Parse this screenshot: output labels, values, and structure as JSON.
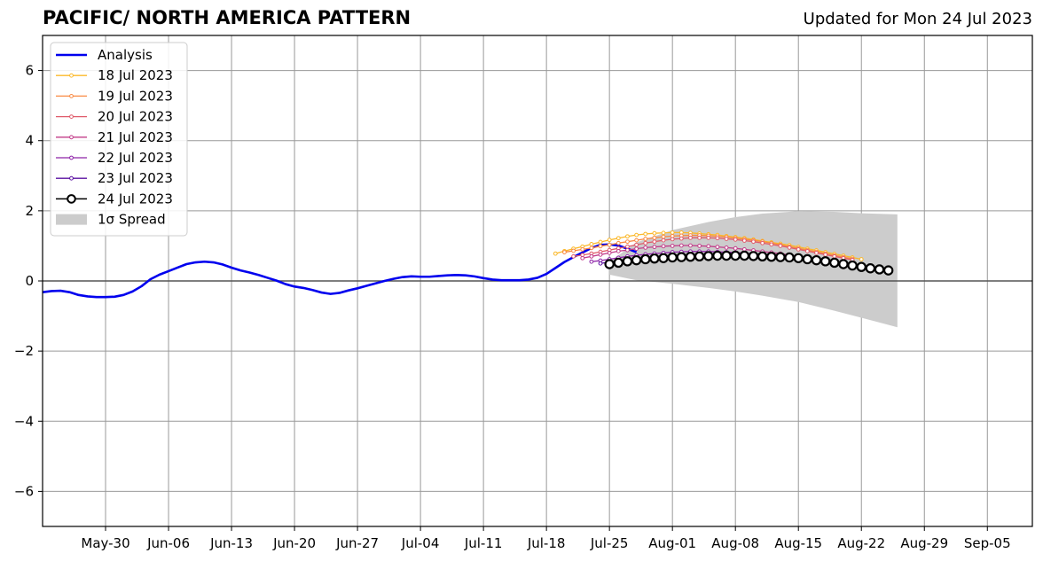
{
  "header": {
    "title": "PACIFIC/ NORTH AMERICA PATTERN",
    "subtitle": "Updated for Mon 24 Jul 2023"
  },
  "chart_data": {
    "type": "line",
    "title": "PACIFIC/ NORTH AMERICA PATTERN",
    "subtitle": "Updated for Mon 24 Jul 2023",
    "xlabel": "",
    "ylabel": "",
    "xlim": [
      "2023-05-23",
      "2023-09-10"
    ],
    "ylim": [
      -7,
      7
    ],
    "x_ticks": [
      "May-30",
      "Jun-06",
      "Jun-13",
      "Jun-20",
      "Jun-27",
      "Jul-04",
      "Jul-11",
      "Jul-18",
      "Jul-25",
      "Aug-01",
      "Aug-08",
      "Aug-15",
      "Aug-22",
      "Aug-29",
      "Sep-05"
    ],
    "x_tick_dates": [
      "2023-05-30",
      "2023-06-06",
      "2023-06-13",
      "2023-06-20",
      "2023-06-27",
      "2023-07-04",
      "2023-07-11",
      "2023-07-18",
      "2023-07-25",
      "2023-08-01",
      "2023-08-08",
      "2023-08-15",
      "2023-08-22",
      "2023-08-29",
      "2023-09-05"
    ],
    "y_ticks": [
      6,
      4,
      2,
      0,
      -2,
      -4,
      -6
    ],
    "y_tick_labels": [
      "6",
      "4",
      "2",
      "0",
      "−2",
      "−4",
      "−6"
    ],
    "grid": true,
    "legend_position": "top-left",
    "analysis": {
      "name": "Analysis",
      "color": "#0000ee",
      "start_date": "2023-05-23",
      "values": [
        -0.32,
        -0.29,
        -0.28,
        -0.32,
        -0.4,
        -0.44,
        -0.46,
        -0.46,
        -0.45,
        -0.4,
        -0.3,
        -0.15,
        0.05,
        0.18,
        0.28,
        0.38,
        0.48,
        0.53,
        0.55,
        0.53,
        0.47,
        0.38,
        0.3,
        0.24,
        0.17,
        0.09,
        0.01,
        -0.09,
        -0.16,
        -0.2,
        -0.26,
        -0.33,
        -0.37,
        -0.34,
        -0.27,
        -0.21,
        -0.14,
        -0.07,
        0.0,
        0.06,
        0.11,
        0.13,
        0.12,
        0.12,
        0.14,
        0.16,
        0.17,
        0.16,
        0.13,
        0.08,
        0.04,
        0.02,
        0.02,
        0.02,
        0.04,
        0.09,
        0.2,
        0.37,
        0.54,
        0.68,
        0.81,
        0.94,
        1.03,
        1.04,
        1.01,
        0.92,
        0.82
      ]
    },
    "forecasts": [
      {
        "name": "18 Jul 2023",
        "color": "#fbb829",
        "start_date": "2023-07-19",
        "values": [
          0.78,
          0.85,
          0.92,
          0.98,
          1.05,
          1.11,
          1.17,
          1.22,
          1.27,
          1.31,
          1.34,
          1.36,
          1.37,
          1.38,
          1.38,
          1.37,
          1.35,
          1.33,
          1.31,
          1.28,
          1.25,
          1.22,
          1.18,
          1.14,
          1.1,
          1.06,
          1.02,
          0.97,
          0.92,
          0.87,
          0.82,
          0.77,
          0.72,
          0.67,
          0.62
        ]
      },
      {
        "name": "19 Jul 2023",
        "color": "#f98a43",
        "start_date": "2023-07-20",
        "values": [
          0.82,
          0.86,
          0.9,
          0.94,
          0.99,
          1.03,
          1.08,
          1.12,
          1.16,
          1.2,
          1.23,
          1.26,
          1.28,
          1.29,
          1.3,
          1.3,
          1.29,
          1.27,
          1.25,
          1.22,
          1.19,
          1.16,
          1.12,
          1.08,
          1.03,
          0.98,
          0.93,
          0.88,
          0.83,
          0.78,
          0.73,
          0.68,
          0.63
        ]
      },
      {
        "name": "20 Jul 2023",
        "color": "#e05c6b",
        "start_date": "2023-07-21",
        "values": [
          0.7,
          0.74,
          0.78,
          0.83,
          0.88,
          0.93,
          0.98,
          1.03,
          1.08,
          1.12,
          1.16,
          1.19,
          1.21,
          1.23,
          1.23,
          1.23,
          1.22,
          1.2,
          1.18,
          1.15,
          1.12,
          1.08,
          1.04,
          1.0,
          0.95,
          0.9,
          0.85,
          0.8,
          0.75,
          0.7,
          0.65,
          0.6
        ]
      },
      {
        "name": "21 Jul 2023",
        "color": "#c23d8a",
        "start_date": "2023-07-22",
        "values": [
          0.65,
          0.7,
          0.75,
          0.8,
          0.85,
          0.88,
          0.92,
          0.95,
          0.97,
          0.99,
          1.0,
          1.01,
          1.01,
          1.0,
          0.99,
          0.97,
          0.95,
          0.93,
          0.9,
          0.87,
          0.84,
          0.81,
          0.78,
          0.74,
          0.7,
          0.66,
          0.62,
          0.58,
          0.55,
          0.52,
          0.49
        ]
      },
      {
        "name": "22 Jul 2023",
        "color": "#8e24a8",
        "start_date": "2023-07-23",
        "values": [
          0.55,
          0.58,
          0.62,
          0.66,
          0.7,
          0.73,
          0.76,
          0.78,
          0.8,
          0.82,
          0.83,
          0.84,
          0.84,
          0.84,
          0.83,
          0.82,
          0.81,
          0.79,
          0.77,
          0.75,
          0.72,
          0.7,
          0.67,
          0.64,
          0.61,
          0.58,
          0.55,
          0.52,
          0.49,
          0.46
        ]
      },
      {
        "name": "23 Jul 2023",
        "color": "#5a0fa0",
        "start_date": "2023-07-24",
        "values": [
          0.5,
          0.54,
          0.57,
          0.6,
          0.63,
          0.65,
          0.67,
          0.68,
          0.7,
          0.71,
          0.71,
          0.72,
          0.72,
          0.72,
          0.72,
          0.71,
          0.7,
          0.69,
          0.68,
          0.66,
          0.64,
          0.62,
          0.6,
          0.58,
          0.55,
          0.52,
          0.49,
          0.46,
          0.43
        ]
      },
      {
        "name": "24 Jul 2023",
        "color": "#000000",
        "start_date": "2023-07-25",
        "values": [
          0.48,
          0.52,
          0.56,
          0.59,
          0.62,
          0.64,
          0.65,
          0.67,
          0.68,
          0.69,
          0.7,
          0.71,
          0.72,
          0.72,
          0.72,
          0.72,
          0.71,
          0.7,
          0.69,
          0.68,
          0.67,
          0.65,
          0.62,
          0.59,
          0.56,
          0.52,
          0.48,
          0.44,
          0.4,
          0.36,
          0.33,
          0.3
        ]
      }
    ],
    "spread": {
      "name": "1σ Spread",
      "color": "#cccccc",
      "dates": [
        "2023-07-25",
        "2023-07-28",
        "2023-08-01",
        "2023-08-05",
        "2023-08-08",
        "2023-08-11",
        "2023-08-15",
        "2023-08-19",
        "2023-08-22",
        "2023-08-26"
      ],
      "upper": [
        0.55,
        1.1,
        1.45,
        1.68,
        1.82,
        1.92,
        1.99,
        1.97,
        1.93,
        1.9
      ],
      "lower": [
        0.18,
        0.02,
        -0.08,
        -0.2,
        -0.3,
        -0.42,
        -0.6,
        -0.85,
        -1.05,
        -1.32
      ]
    }
  },
  "colors": {
    "axis": "#000000",
    "grid": "#999999",
    "zero_line": "#555555",
    "analysis": "#0000ee"
  }
}
